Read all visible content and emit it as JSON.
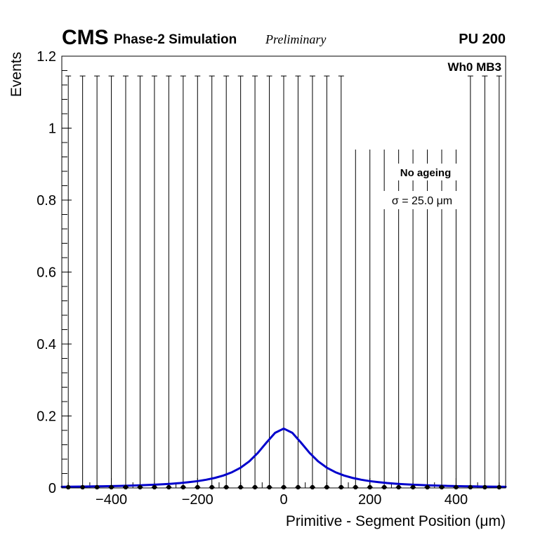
{
  "header": {
    "experiment": "CMS",
    "subtitle": "Phase-2 Simulation",
    "style_label": "Preliminary",
    "right_label": "PU 200"
  },
  "plot_label": "Wh0 MB3",
  "annotation_box": {
    "line1": "No ageing",
    "line2": "σ = 25.0 μm"
  },
  "colors": {
    "fit_curve": "#0000cc",
    "marker": "#000000",
    "frame": "#000000",
    "background": "#ffffff"
  },
  "chart_data": {
    "type": "scatter",
    "title": "",
    "xlabel": "Primitive - Segment Position (μm)",
    "ylabel": "Events",
    "xlim": [
      -515,
      515
    ],
    "ylim": [
      0,
      1.2
    ],
    "grid": false,
    "legend": "none",
    "x_major_ticks": [
      -400,
      -200,
      0,
      200,
      400
    ],
    "x_tick_labels": [
      "−400",
      "−200",
      "0",
      "200",
      "400"
    ],
    "x_minor_step": 50,
    "y_major_ticks": [
      0,
      0.2,
      0.4,
      0.6,
      0.8,
      1,
      1.2
    ],
    "y_tick_labels": [
      "0",
      "0.2",
      "0.4",
      "0.6",
      "0.8",
      "1",
      "1.2"
    ],
    "y_minor_step": 0.04,
    "series": [
      {
        "name": "data-points",
        "type": "errorbar-scatter",
        "marker_color": "#000000",
        "x": [
          -500,
          -466.7,
          -433.3,
          -400,
          -366.7,
          -333.3,
          -300,
          -266.7,
          -233.3,
          -200,
          -166.7,
          -133.3,
          -100,
          -66.7,
          -33.3,
          0,
          33.3,
          66.7,
          100,
          133.3,
          166.7,
          200,
          233.3,
          266.7,
          300,
          333.3,
          366.7,
          400,
          433.3,
          466.7,
          500
        ],
        "y": 0.002,
        "err_top": 1.145
      },
      {
        "name": "fit-curve",
        "type": "line",
        "color": "#0000cc",
        "x": [
          -515,
          -500,
          -480,
          -460,
          -440,
          -420,
          -400,
          -380,
          -360,
          -340,
          -320,
          -300,
          -280,
          -260,
          -240,
          -220,
          -200,
          -180,
          -160,
          -140,
          -120,
          -100,
          -80,
          -60,
          -40,
          -20,
          0,
          20,
          40,
          60,
          80,
          100,
          120,
          140,
          160,
          180,
          200,
          220,
          240,
          260,
          280,
          300,
          320,
          340,
          360,
          380,
          400,
          420,
          440,
          460,
          480,
          500,
          515
        ],
        "y": [
          0.0032,
          0.0034,
          0.0036,
          0.0039,
          0.0043,
          0.0047,
          0.0052,
          0.0057,
          0.0063,
          0.0071,
          0.008,
          0.009,
          0.0102,
          0.0118,
          0.0136,
          0.016,
          0.0189,
          0.0228,
          0.0278,
          0.0345,
          0.0437,
          0.0563,
          0.0738,
          0.0974,
          0.1261,
          0.1532,
          0.165,
          0.1532,
          0.1261,
          0.0974,
          0.0738,
          0.0563,
          0.0437,
          0.0345,
          0.0278,
          0.0228,
          0.0189,
          0.016,
          0.0136,
          0.0118,
          0.0102,
          0.009,
          0.008,
          0.0071,
          0.0063,
          0.0057,
          0.0052,
          0.0047,
          0.0043,
          0.0039,
          0.0036,
          0.0034,
          0.0032
        ]
      }
    ]
  }
}
